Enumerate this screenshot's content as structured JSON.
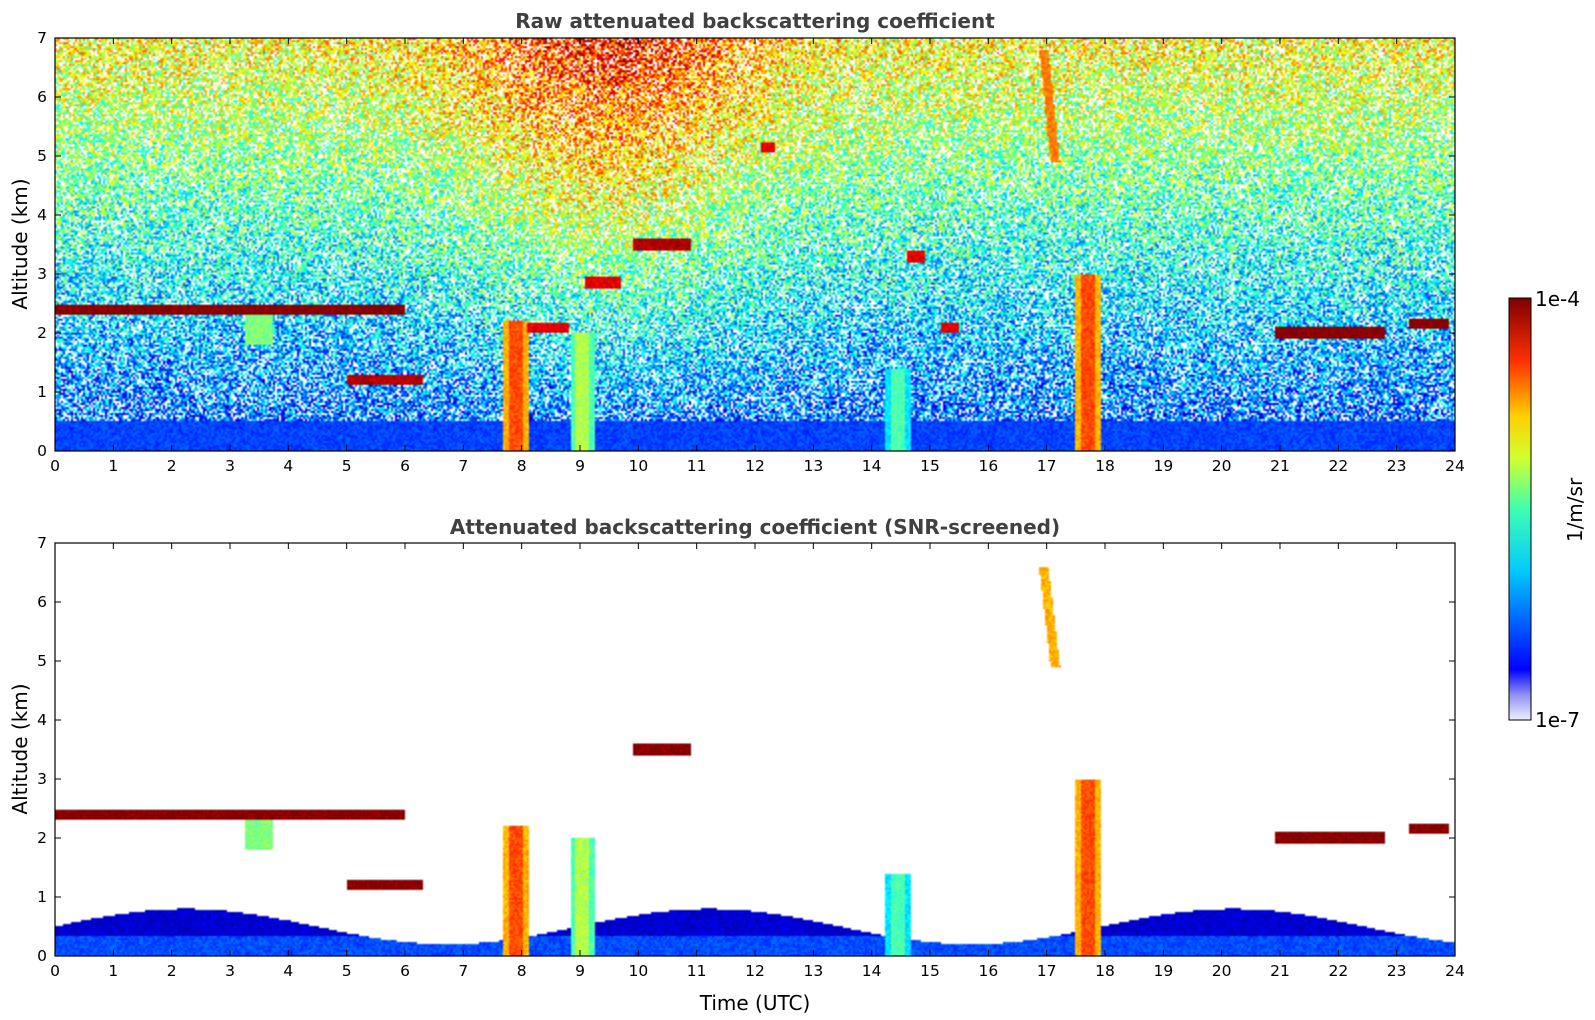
{
  "chart_data": [
    {
      "type": "heatmap",
      "title": "Raw attenuated backscattering coefficient",
      "xlabel": "",
      "ylabel": "Altitude (km)",
      "xlim": [
        0,
        24
      ],
      "ylim": [
        0,
        7
      ],
      "xticks": [
        "0",
        "1",
        "2",
        "3",
        "4",
        "5",
        "6",
        "7",
        "8",
        "9",
        "10",
        "11",
        "12",
        "13",
        "14",
        "15",
        "16",
        "17",
        "18",
        "19",
        "20",
        "21",
        "22",
        "23",
        "24"
      ],
      "yticks": [
        "0",
        "1",
        "2",
        "3",
        "4",
        "5",
        "6",
        "7"
      ],
      "features": [
        {
          "kind": "cloud_layer",
          "t_start": 0,
          "t_end": 6,
          "alt_km": 2.4,
          "level": 1.0
        },
        {
          "kind": "cloud_layer",
          "t_start": 5.0,
          "t_end": 6.3,
          "alt_km": 1.2,
          "level": 0.95
        },
        {
          "kind": "cloud_layer",
          "t_start": 9.9,
          "t_end": 10.9,
          "alt_km": 3.5,
          "level": 0.95
        },
        {
          "kind": "cloud_layer",
          "t_start": 8.1,
          "t_end": 8.8,
          "alt_km": 2.1,
          "level": 0.9
        },
        {
          "kind": "cloud_layer",
          "t_start": 9.1,
          "t_end": 9.7,
          "alt_km": 2.85,
          "level": 0.9
        },
        {
          "kind": "cloud_layer",
          "t_start": 12.1,
          "t_end": 12.35,
          "alt_km": 5.15,
          "level": 0.9
        },
        {
          "kind": "cloud_layer",
          "t_start": 14.6,
          "t_end": 14.9,
          "alt_km": 3.3,
          "level": 0.9
        },
        {
          "kind": "cloud_layer",
          "t_start": 15.2,
          "t_end": 15.5,
          "alt_km": 2.1,
          "level": 0.9
        },
        {
          "kind": "cloud_layer",
          "t_start": 20.9,
          "t_end": 22.8,
          "alt_km": 2.0,
          "level": 1.0
        },
        {
          "kind": "cloud_layer",
          "t_start": 23.2,
          "t_end": 23.9,
          "alt_km": 2.15,
          "level": 1.0
        },
        {
          "kind": "precip_column",
          "t_center": 7.9,
          "top_km": 2.2,
          "level": 0.8
        },
        {
          "kind": "precip_column",
          "t_center": 9.05,
          "top_km": 2.0,
          "level": 0.55
        },
        {
          "kind": "precip_column",
          "t_center": 17.7,
          "top_km": 3.0,
          "level": 0.8
        },
        {
          "kind": "precip_column",
          "t_center": 14.45,
          "top_km": 1.4,
          "level": 0.45
        },
        {
          "kind": "virga",
          "t_center": 3.5,
          "top_km": 2.3,
          "bottom_km": 1.8,
          "level": 0.5
        },
        {
          "kind": "cirrus",
          "t_center": 17.05,
          "top_km": 6.8,
          "bottom_km": 4.9,
          "level": 0.75
        }
      ]
    },
    {
      "type": "heatmap",
      "title": "Attenuated backscattering coefficient (SNR-screened)",
      "xlabel": "Time (UTC)",
      "ylabel": "Altitude (km)",
      "xlim": [
        0,
        24
      ],
      "ylim": [
        0,
        7
      ],
      "xticks": [
        "0",
        "1",
        "2",
        "3",
        "4",
        "5",
        "6",
        "7",
        "8",
        "9",
        "10",
        "11",
        "12",
        "13",
        "14",
        "15",
        "16",
        "17",
        "18",
        "19",
        "20",
        "21",
        "22",
        "23",
        "24"
      ],
      "yticks": [
        "0",
        "1",
        "2",
        "3",
        "4",
        "5",
        "6",
        "7"
      ],
      "features": [
        {
          "kind": "cloud_layer",
          "t_start": 0,
          "t_end": 6,
          "alt_km": 2.4,
          "level": 1.0
        },
        {
          "kind": "cloud_layer",
          "t_start": 5.0,
          "t_end": 6.3,
          "alt_km": 1.2,
          "level": 1.0
        },
        {
          "kind": "cloud_layer",
          "t_start": 9.9,
          "t_end": 10.9,
          "alt_km": 3.5,
          "level": 1.0
        },
        {
          "kind": "cloud_layer",
          "t_start": 20.9,
          "t_end": 22.8,
          "alt_km": 2.0,
          "level": 1.0
        },
        {
          "kind": "cloud_layer",
          "t_start": 23.2,
          "t_end": 23.9,
          "alt_km": 2.15,
          "level": 1.0
        },
        {
          "kind": "precip_column",
          "t_center": 7.9,
          "top_km": 2.2,
          "level": 0.8
        },
        {
          "kind": "precip_column",
          "t_center": 9.05,
          "top_km": 2.0,
          "level": 0.55
        },
        {
          "kind": "precip_column",
          "t_center": 17.7,
          "top_km": 3.0,
          "level": 0.8
        },
        {
          "kind": "precip_column",
          "t_center": 14.45,
          "top_km": 1.4,
          "level": 0.45
        },
        {
          "kind": "virga",
          "t_center": 3.5,
          "top_km": 2.3,
          "bottom_km": 1.8,
          "level": 0.5
        },
        {
          "kind": "cirrus",
          "t_center": 17.05,
          "top_km": 6.6,
          "bottom_km": 4.9,
          "level": 0.7
        },
        {
          "kind": "boundary_layer",
          "t_start": 0,
          "t_end": 24,
          "top_km": 0.5,
          "level": 0.15
        }
      ]
    }
  ],
  "colorbar": {
    "label": "1/m/sr",
    "max_label": "1e-4",
    "min_label": "1e-7",
    "scale": "log",
    "colormap": "jet",
    "low_color": "#e8e8f8",
    "high_color": "#7f0000"
  }
}
